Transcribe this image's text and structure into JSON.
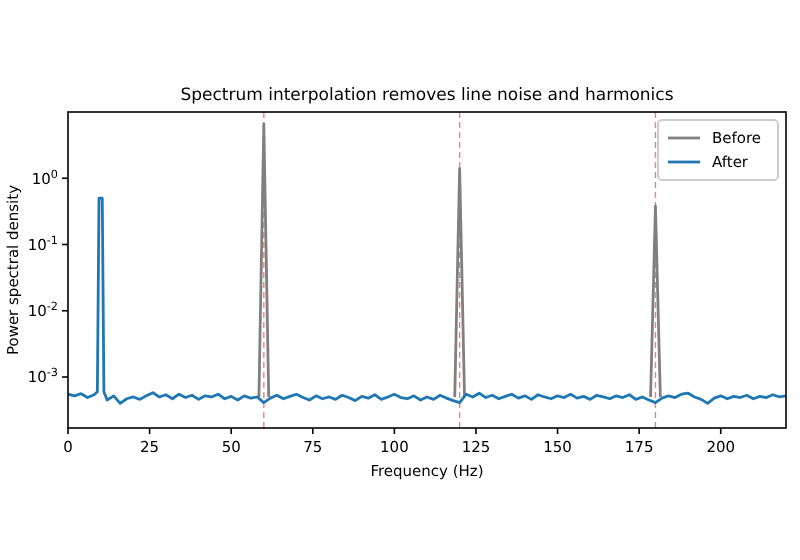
{
  "chart_data": {
    "type": "line",
    "title": "Spectrum interpolation removes line noise and harmonics",
    "xlabel": "Frequency (Hz)",
    "ylabel": "Power spectral density",
    "log": "y",
    "xlim": [
      0,
      220
    ],
    "xticks": [
      0,
      25,
      50,
      75,
      100,
      125,
      150,
      175,
      200
    ],
    "ylim": [
      0.00017,
      10
    ],
    "yticks": [
      {
        "value": 0.001,
        "label": "10$^{-3}$"
      },
      {
        "value": 0.01,
        "label": "10$^{-2}$"
      },
      {
        "value": 0.1,
        "label": "10$^{-1}$"
      },
      {
        "value": 1,
        "label": "10$^{0}$"
      }
    ],
    "grid": false,
    "legend": "top right",
    "ref_lines": [
      {
        "axis": "x",
        "value": 60,
        "color": "#f08080",
        "line_style": "dashed"
      },
      {
        "axis": "x",
        "value": 120,
        "color": "#f08080",
        "line_style": "dashed"
      },
      {
        "axis": "x",
        "value": 180,
        "color": "#f08080",
        "line_style": "dashed"
      }
    ],
    "series": [
      {
        "name": "Before",
        "color": "#808080",
        "x": [
          58.5,
          60,
          61.5,
          90,
          118.5,
          120,
          121.5,
          150,
          178.5,
          180,
          181.5
        ],
        "values": [
          0.0005,
          6.6,
          0.0005,
          null,
          0.0005,
          1.4,
          0.0005,
          null,
          0.0005,
          0.38,
          0.0005
        ]
      },
      {
        "name": "After",
        "color": "#1f77b4",
        "x": [
          0,
          2,
          4,
          6,
          8,
          9,
          9.5,
          10.5,
          11,
          12,
          14,
          16,
          18,
          20,
          22,
          24,
          26,
          28,
          30,
          32,
          34,
          36,
          38,
          40,
          42,
          44,
          46,
          48,
          50,
          52,
          54,
          56,
          58,
          60,
          62,
          64,
          66,
          68,
          70,
          72,
          74,
          76,
          78,
          80,
          82,
          84,
          86,
          88,
          90,
          92,
          94,
          96,
          98,
          100,
          102,
          104,
          106,
          108,
          110,
          112,
          114,
          116,
          118,
          120,
          122,
          124,
          126,
          128,
          130,
          132,
          134,
          136,
          138,
          140,
          142,
          144,
          146,
          148,
          150,
          152,
          154,
          156,
          158,
          160,
          162,
          164,
          166,
          168,
          170,
          172,
          174,
          176,
          178,
          180,
          182,
          184,
          186,
          188,
          190,
          192,
          194,
          196,
          198,
          200,
          202,
          204,
          206,
          208,
          210,
          212,
          214,
          216,
          218,
          220
        ],
        "values": [
          0.00055,
          0.00052,
          0.00056,
          0.00049,
          0.00054,
          0.0006,
          0.5,
          0.5,
          0.0006,
          0.00045,
          0.00052,
          0.0004,
          0.00047,
          0.0005,
          0.00046,
          0.00052,
          0.00058,
          0.0005,
          0.00054,
          0.00047,
          0.00055,
          0.00049,
          0.00053,
          0.00046,
          0.00052,
          0.0005,
          0.00055,
          0.00047,
          0.00051,
          0.00045,
          0.00052,
          0.00048,
          0.0005,
          0.00041,
          0.00048,
          0.00053,
          0.00047,
          0.00051,
          0.00055,
          0.00049,
          0.00045,
          0.00052,
          0.00047,
          0.0005,
          0.00046,
          0.00053,
          0.00049,
          0.00044,
          0.00051,
          0.00048,
          0.00054,
          0.00046,
          0.0005,
          0.00055,
          0.00049,
          0.00047,
          0.00052,
          0.00045,
          0.0005,
          0.00046,
          0.00053,
          0.00048,
          0.00044,
          0.00041,
          0.00055,
          0.0005,
          0.00057,
          0.00049,
          0.00053,
          0.00047,
          0.00051,
          0.00055,
          0.00048,
          0.00052,
          0.00046,
          0.00054,
          0.0005,
          0.00047,
          0.00052,
          0.00049,
          0.00055,
          0.00048,
          0.00051,
          0.00046,
          0.00053,
          0.0005,
          0.00047,
          0.00052,
          0.00049,
          0.00054,
          0.00046,
          0.0005,
          0.00045,
          0.00041,
          0.00048,
          0.00052,
          0.00049,
          0.00055,
          0.00057,
          0.0005,
          0.00046,
          0.0004,
          0.00048,
          0.00052,
          0.00047,
          0.00051,
          0.00049,
          0.00053,
          0.00047,
          0.00051,
          0.00049,
          0.00054,
          0.0005,
          0.00052
        ]
      }
    ]
  }
}
